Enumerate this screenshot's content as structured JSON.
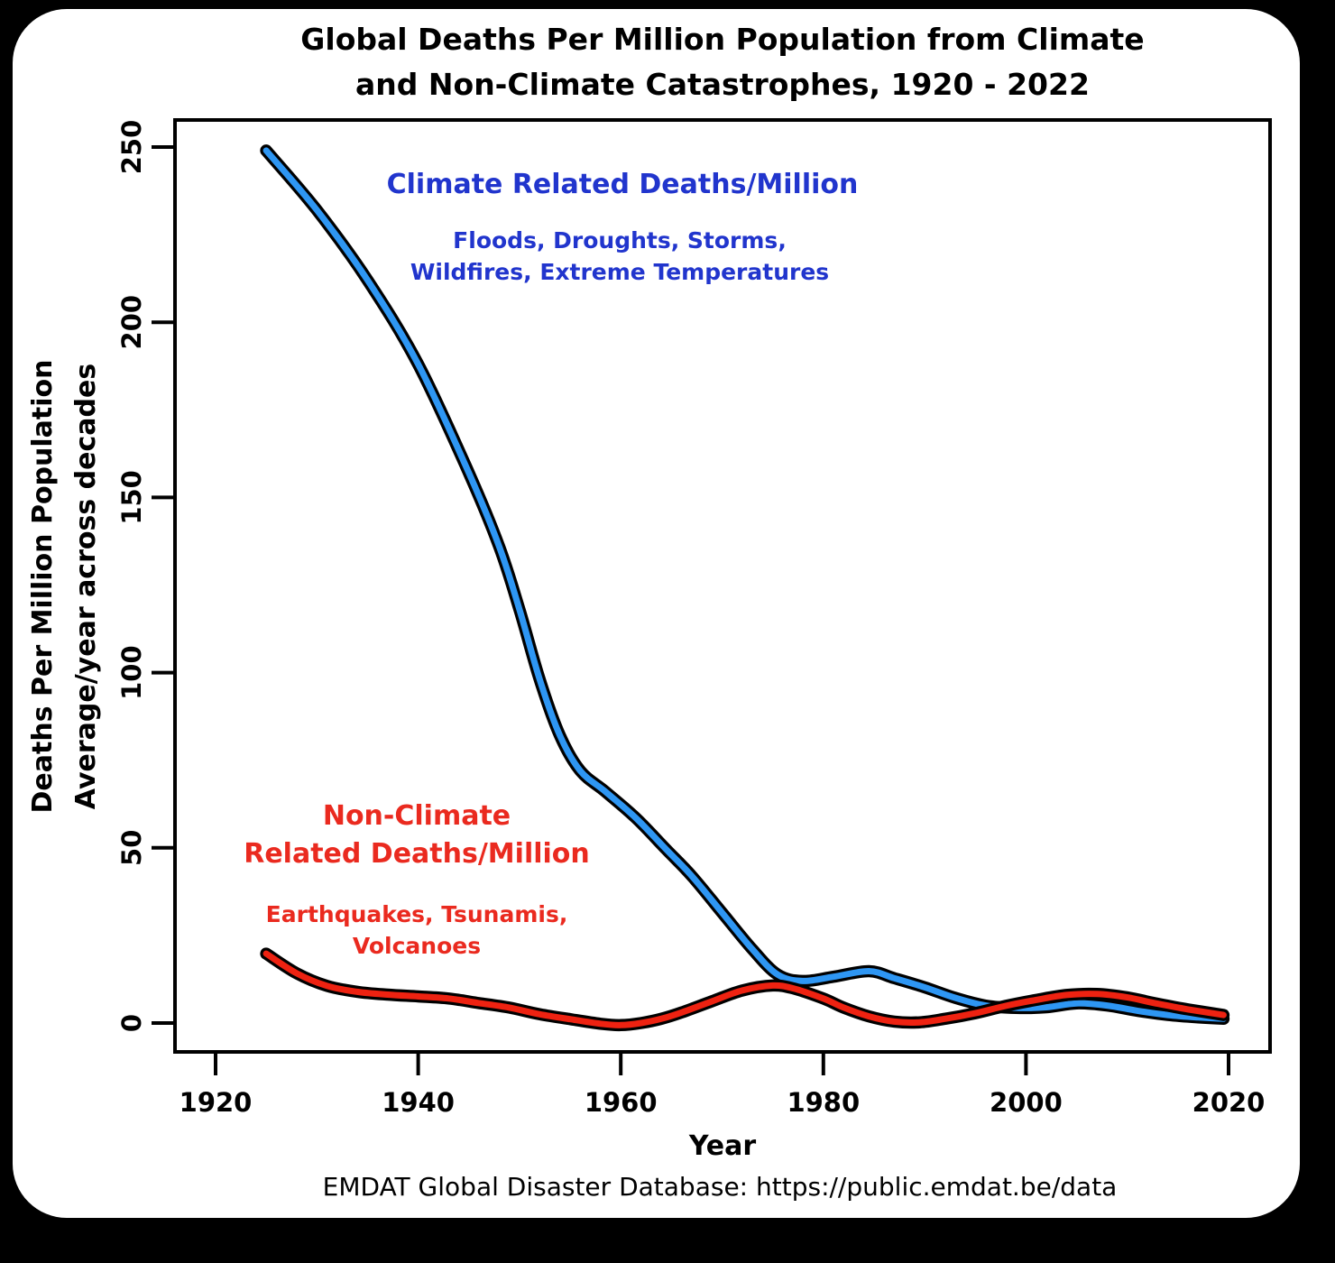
{
  "chart_data": {
    "type": "line",
    "title_line1": "Global Deaths Per Million Population from Climate",
    "title_line2": "and Non-Climate Catastrophes, 1920 - 2022",
    "xlabel": "Year",
    "ylabel_line1": "Deaths Per Million Population",
    "ylabel_line2": "Average/year across decades",
    "x_ticks": [
      1920,
      1940,
      1960,
      1980,
      2000,
      2020
    ],
    "y_ticks": [
      0,
      50,
      100,
      150,
      200,
      250
    ],
    "xlim": [
      1916,
      2024
    ],
    "ylim": [
      -8,
      258
    ],
    "grid": false,
    "series": [
      {
        "name": "Climate Related Deaths/Million",
        "color": "#2e96f3",
        "points": [
          [
            1925,
            249
          ],
          [
            1930,
            232
          ],
          [
            1935,
            212
          ],
          [
            1940,
            188
          ],
          [
            1945,
            157
          ],
          [
            1948,
            136
          ],
          [
            1950,
            118
          ],
          [
            1952,
            98
          ],
          [
            1954,
            82
          ],
          [
            1956,
            72
          ],
          [
            1958.5,
            66
          ],
          [
            1961.5,
            58.5
          ],
          [
            1964.5,
            49.5
          ],
          [
            1967,
            42
          ],
          [
            1970,
            31.5
          ],
          [
            1973,
            21
          ],
          [
            1975.5,
            13.8
          ],
          [
            1978,
            12.0
          ],
          [
            1981,
            13.2
          ],
          [
            1984.5,
            14.8
          ],
          [
            1987,
            12.8
          ],
          [
            1990,
            10.2
          ],
          [
            1993,
            7.2
          ],
          [
            1996,
            5.0
          ],
          [
            1999,
            4.3
          ],
          [
            2002,
            4.5
          ],
          [
            2005,
            5.6
          ],
          [
            2008,
            5.0
          ],
          [
            2011,
            3.5
          ],
          [
            2014,
            2.3
          ],
          [
            2017,
            1.6
          ],
          [
            2019.5,
            1.2
          ]
        ]
      },
      {
        "name": "Non-Climate Related Deaths/Million",
        "color": "#ee2211",
        "points": [
          [
            1925,
            19.8
          ],
          [
            1928,
            14.2
          ],
          [
            1931,
            10.6
          ],
          [
            1934,
            8.9
          ],
          [
            1937,
            8.1
          ],
          [
            1940,
            7.6
          ],
          [
            1943,
            7.0
          ],
          [
            1946,
            5.7
          ],
          [
            1949,
            4.4
          ],
          [
            1952,
            2.5
          ],
          [
            1955,
            1.1
          ],
          [
            1958,
            -0.2
          ],
          [
            1960,
            -0.6
          ],
          [
            1962,
            0.0
          ],
          [
            1964,
            1.2
          ],
          [
            1966,
            3.0
          ],
          [
            1969,
            6.2
          ],
          [
            1972,
            9.3
          ],
          [
            1975,
            10.7
          ],
          [
            1977,
            9.9
          ],
          [
            1980,
            7.0
          ],
          [
            1982,
            4.4
          ],
          [
            1984.5,
            1.9
          ],
          [
            1987,
            0.4
          ],
          [
            1989.5,
            0.2
          ],
          [
            1992,
            1.2
          ],
          [
            1995,
            2.8
          ],
          [
            1998,
            4.9
          ],
          [
            2001,
            6.6
          ],
          [
            2004,
            8.0
          ],
          [
            2007,
            8.3
          ],
          [
            2010,
            7.3
          ],
          [
            2013,
            5.5
          ],
          [
            2016,
            3.9
          ],
          [
            2019.5,
            2.3
          ]
        ]
      }
    ],
    "annotations": {
      "climate": {
        "title": "Climate Related Deaths/Million",
        "sub1": "Floods, Droughts, Storms,",
        "sub2": "Wildfires, Extreme Temperatures",
        "color": "#2135cd"
      },
      "nonclimate": {
        "title1": "Non-Climate",
        "title2": "Related Deaths/Million",
        "sub1": "Earthquakes, Tsunamis,",
        "sub2": "Volcanoes",
        "color": "#ea2a1f"
      }
    },
    "source_note": "EMDAT Global Disaster Database: https://public.emdat.be/data"
  }
}
